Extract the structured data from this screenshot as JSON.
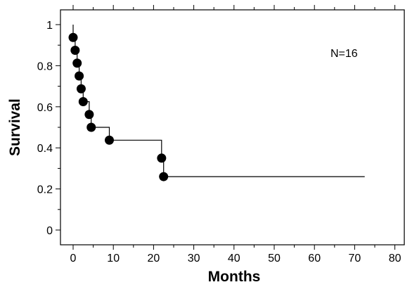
{
  "chart_data": {
    "type": "line",
    "subtype": "kaplan-meier-step",
    "title": "",
    "xlabel": "Months",
    "ylabel": "Survival",
    "xlim": [
      -2,
      82
    ],
    "ylim": [
      -0.05,
      1.08
    ],
    "xticks": [
      0,
      10,
      20,
      30,
      40,
      50,
      60,
      70,
      80
    ],
    "xtick_labels": [
      "0",
      "10",
      "20",
      "30",
      "40",
      "50",
      "60",
      "70",
      "80"
    ],
    "yticks": [
      0,
      0.2,
      0.4,
      0.6,
      0.8,
      1
    ],
    "ytick_labels": [
      "0",
      "0.2",
      "0.4",
      "0.6",
      "0.8",
      "1"
    ],
    "grid": false,
    "annotation": "N=16",
    "series": [
      {
        "step_curve": [
          [
            0,
            1.0
          ],
          [
            0,
            0.9375
          ],
          [
            0.5,
            0.9375
          ],
          [
            0.5,
            0.875
          ],
          [
            1,
            0.875
          ],
          [
            1,
            0.8125
          ],
          [
            1.5,
            0.8125
          ],
          [
            1.5,
            0.75
          ],
          [
            2,
            0.75
          ],
          [
            2,
            0.6875
          ],
          [
            2.5,
            0.6875
          ],
          [
            2.5,
            0.625
          ],
          [
            4,
            0.625
          ],
          [
            4,
            0.5625
          ],
          [
            4.5,
            0.5625
          ],
          [
            4.5,
            0.5
          ],
          [
            9,
            0.5
          ],
          [
            9,
            0.4375
          ],
          [
            22,
            0.4375
          ],
          [
            22,
            0.35
          ],
          [
            22.5,
            0.35
          ],
          [
            22.5,
            0.26
          ],
          [
            72.5,
            0.26
          ]
        ],
        "events": [
          {
            "x": 0,
            "y": 0.9375
          },
          {
            "x": 0.5,
            "y": 0.875
          },
          {
            "x": 1,
            "y": 0.8125
          },
          {
            "x": 1.5,
            "y": 0.75
          },
          {
            "x": 2,
            "y": 0.6875
          },
          {
            "x": 2.5,
            "y": 0.625
          },
          {
            "x": 4,
            "y": 0.5625
          },
          {
            "x": 4.5,
            "y": 0.5
          },
          {
            "x": 9,
            "y": 0.4375
          },
          {
            "x": 22,
            "y": 0.35
          },
          {
            "x": 22.5,
            "y": 0.26
          }
        ],
        "color": "#000000"
      }
    ]
  }
}
